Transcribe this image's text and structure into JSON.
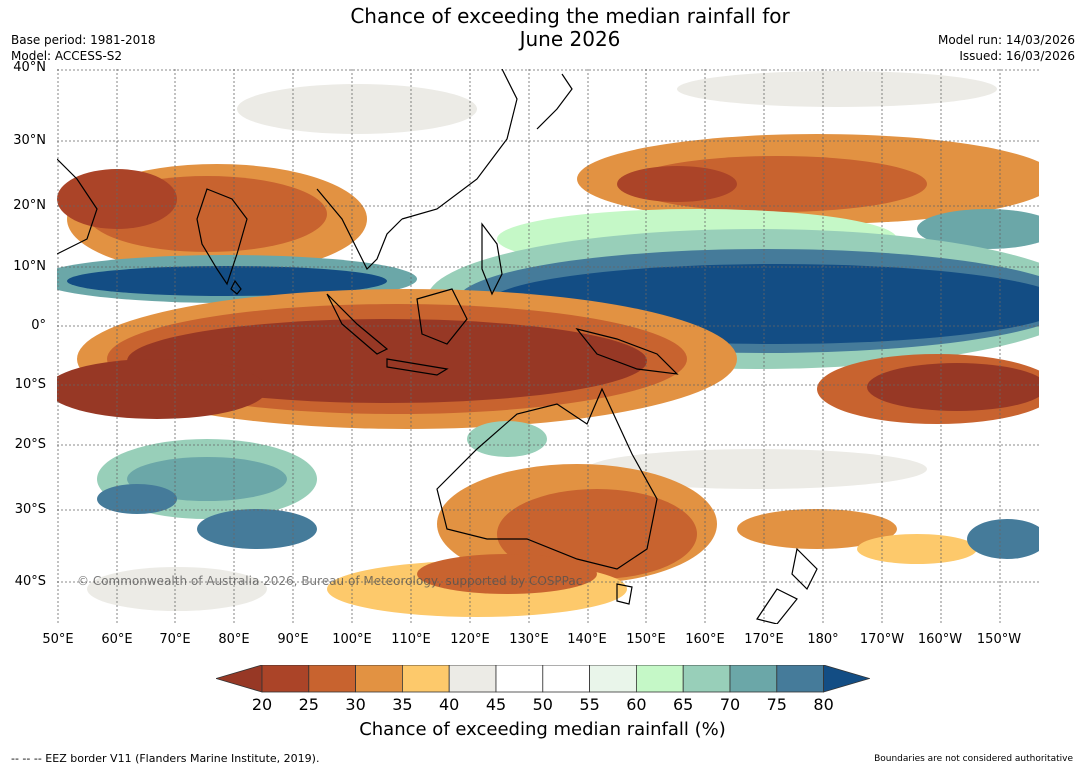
{
  "header": {
    "title_line1": "Chance of exceeding the median rainfall for",
    "title_line2": "June 2026",
    "base_period": "Base period: 1981-2018",
    "model": "Model: ACCESS-S2",
    "model_run": "Model run: 14/03/2026",
    "issued": "Issued: 16/03/2026"
  },
  "map": {
    "lat_ticks": [
      "40°N",
      "30°N",
      "20°N",
      "10°N",
      "0°",
      "10°S",
      "20°S",
      "30°S",
      "40°S"
    ],
    "lon_ticks": [
      "50°E",
      "60°E",
      "70°E",
      "80°E",
      "90°E",
      "100°E",
      "110°E",
      "120°E",
      "130°E",
      "140°E",
      "150°E",
      "160°E",
      "170°E",
      "180°",
      "170°W",
      "160°W",
      "150°W"
    ],
    "watermark": "© Commonwealth of Australia 2026, Bureau of Meteorology, supported by COSPPac"
  },
  "legend": {
    "title": "Chance of exceeding median rainfall (%)",
    "ticks": [
      "20",
      "25",
      "30",
      "35",
      "40",
      "45",
      "50",
      "55",
      "60",
      "65",
      "70",
      "75",
      "80"
    ],
    "colors": [
      "#973825",
      "#ab4428",
      "#c8632f",
      "#e29242",
      "#fdc96b",
      "#ecebe6",
      "#ffffff",
      "#ffffff",
      "#e9f5ea",
      "#c5f8c7",
      "#98cfb9",
      "#6ba7a8",
      "#457b9a",
      "#134d84"
    ]
  },
  "footer": {
    "eez_note": "--  --  -- EEZ border V11 (Flanders Marine Institute, 2019).",
    "boundaries_note": "Boundaries are not considered authoritative"
  }
}
